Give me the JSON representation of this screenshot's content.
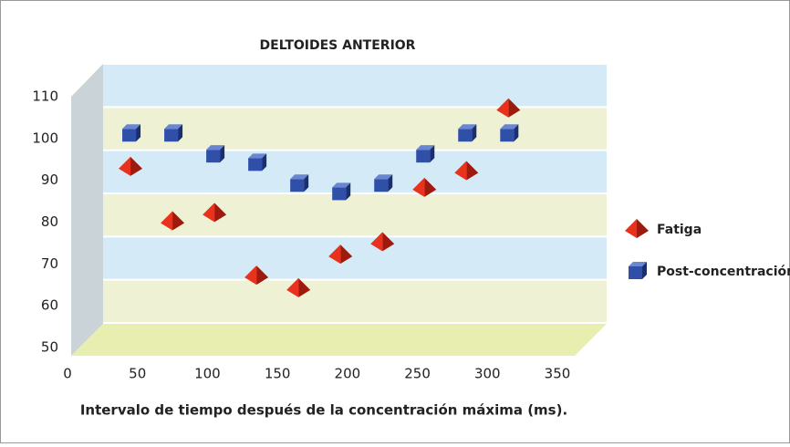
{
  "chart_data": {
    "type": "scatter",
    "title": "DELTOIDES ANTERIOR",
    "x_label": "Intervalo de tiempo después de la concentración máxima (ms).",
    "series": [
      {
        "name": "Fatiga",
        "color": "#e8321e",
        "marker": "pyramid",
        "x": [
          45,
          75,
          105,
          135,
          165,
          195,
          225,
          255,
          285,
          315
        ],
        "values": [
          93,
          80,
          82,
          67,
          64,
          72,
          75,
          88,
          92,
          107
        ]
      },
      {
        "name": "Post-concentración",
        "color": "#2f4fa8",
        "marker": "cube",
        "x": [
          45,
          75,
          105,
          135,
          165,
          195,
          225,
          255,
          285,
          315
        ],
        "values": [
          101,
          101,
          96,
          94,
          89,
          87,
          89,
          96,
          101,
          101
        ]
      }
    ],
    "xlim": [
      0,
      350
    ],
    "xticks": [
      0,
      50,
      100,
      150,
      200,
      250,
      300,
      350
    ],
    "ylim": [
      50,
      110
    ],
    "yticks": [
      50,
      60,
      70,
      80,
      90,
      100,
      110
    ],
    "grid": true,
    "legend": "right"
  }
}
